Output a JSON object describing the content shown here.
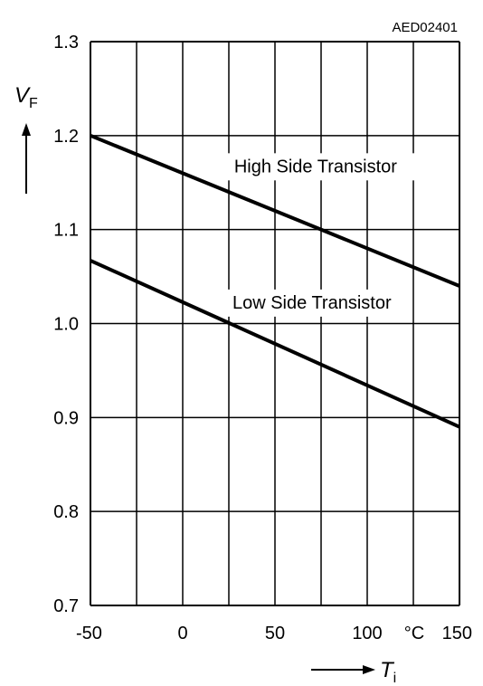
{
  "chart_data": {
    "type": "line",
    "title": "",
    "code": "AED02401",
    "xlabel": {
      "symbol": "T",
      "subscript": "i"
    },
    "ylabel": {
      "symbol": "V",
      "subscript": "F"
    },
    "xunit": "°C",
    "xlim": [
      -50,
      150
    ],
    "ylim": [
      0.7,
      1.3
    ],
    "x_grid": [
      -50,
      -25,
      0,
      25,
      50,
      75,
      100,
      125,
      150
    ],
    "y_grid": [
      0.7,
      0.8,
      0.9,
      1.0,
      1.1,
      1.2,
      1.3
    ],
    "x_ticks": [
      {
        "value": -50,
        "label": "-50"
      },
      {
        "value": 0,
        "label": "0"
      },
      {
        "value": 50,
        "label": "50"
      },
      {
        "value": 100,
        "label": "100"
      },
      {
        "value": 150,
        "label": "150"
      }
    ],
    "y_ticks": [
      {
        "value": 0.7,
        "label": "0.7"
      },
      {
        "value": 0.8,
        "label": "0.8"
      },
      {
        "value": 0.9,
        "label": "0.9"
      },
      {
        "value": 1.0,
        "label": "1.0"
      },
      {
        "value": 1.1,
        "label": "1.1"
      },
      {
        "value": 1.2,
        "label": "1.2"
      },
      {
        "value": 1.3,
        "label": "1.3"
      }
    ],
    "grid": true,
    "series": [
      {
        "id": "high",
        "x": [
          -50,
          150
        ],
        "y": [
          1.2,
          1.04
        ]
      },
      {
        "id": "low",
        "x": [
          -50,
          150
        ],
        "y": [
          1.067,
          0.89
        ]
      }
    ],
    "annotations": [
      {
        "text": "High Side Transistor",
        "x": 72,
        "y": 1.161
      },
      {
        "text": "Low Side Transistor",
        "x": 70,
        "y": 1.016
      }
    ]
  }
}
